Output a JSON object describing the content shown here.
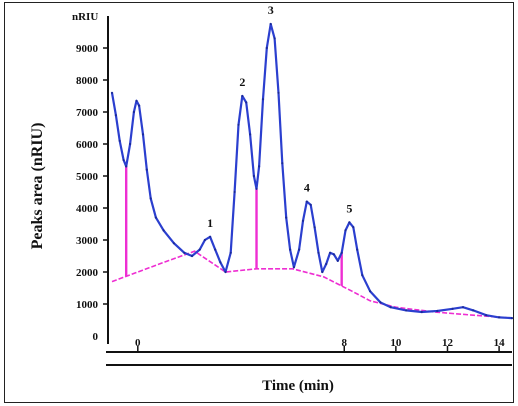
{
  "chart_data": {
    "type": "line",
    "unit_label": "nRIU",
    "xlabel": "Time (min)",
    "ylabel": "Peaks area (nRIU)",
    "xlim": [
      -1.0,
      14.5
    ],
    "ylim": [
      0,
      10000
    ],
    "x_ticks": [
      0,
      8,
      10,
      12,
      14
    ],
    "x_tick_labels": [
      "0",
      "8",
      "10",
      "12",
      "14"
    ],
    "y_ticks": [
      1000,
      2000,
      3000,
      4000,
      5000,
      6000,
      7000,
      8000,
      9000
    ],
    "y_tick_labels": [
      "1000",
      "2000",
      "3000",
      "4000",
      "5000",
      "6000",
      "7000",
      "8000",
      "9000"
    ],
    "y_zero_label": "0",
    "colors": {
      "signal": "#2b3fcf",
      "baseline": "#ee2ed2",
      "drop_lines": "#ee2ed2",
      "axis": "#111111"
    },
    "series": [
      {
        "values": [
          [
            -1.0,
            7600
          ],
          [
            -0.85,
            6900
          ],
          [
            -0.7,
            6100
          ],
          [
            -0.55,
            5500
          ],
          [
            -0.45,
            5300
          ],
          [
            -0.3,
            6000
          ],
          [
            -0.15,
            7000
          ],
          [
            -0.05,
            7350
          ],
          [
            0.05,
            7200
          ],
          [
            0.2,
            6300
          ],
          [
            0.35,
            5200
          ],
          [
            0.5,
            4300
          ],
          [
            0.7,
            3700
          ],
          [
            1.0,
            3300
          ],
          [
            1.4,
            2900
          ],
          [
            1.8,
            2600
          ],
          [
            2.1,
            2500
          ],
          [
            2.4,
            2700
          ],
          [
            2.6,
            3000
          ],
          [
            2.8,
            3100
          ],
          [
            3.0,
            2700
          ],
          [
            3.2,
            2300
          ],
          [
            3.4,
            2000
          ],
          [
            3.6,
            2600
          ],
          [
            3.75,
            4500
          ],
          [
            3.9,
            6600
          ],
          [
            4.05,
            7500
          ],
          [
            4.2,
            7300
          ],
          [
            4.35,
            6300
          ],
          [
            4.5,
            5000
          ],
          [
            4.6,
            4600
          ],
          [
            4.7,
            5300
          ],
          [
            4.85,
            7400
          ],
          [
            5.0,
            9000
          ],
          [
            5.15,
            9750
          ],
          [
            5.3,
            9300
          ],
          [
            5.45,
            7600
          ],
          [
            5.6,
            5400
          ],
          [
            5.75,
            3700
          ],
          [
            5.9,
            2700
          ],
          [
            6.05,
            2150
          ],
          [
            6.25,
            2700
          ],
          [
            6.4,
            3600
          ],
          [
            6.55,
            4200
          ],
          [
            6.7,
            4100
          ],
          [
            6.85,
            3400
          ],
          [
            7.0,
            2600
          ],
          [
            7.15,
            2000
          ],
          [
            7.3,
            2250
          ],
          [
            7.45,
            2600
          ],
          [
            7.6,
            2550
          ],
          [
            7.75,
            2350
          ],
          [
            7.9,
            2600
          ],
          [
            8.05,
            3300
          ],
          [
            8.2,
            3550
          ],
          [
            8.35,
            3400
          ],
          [
            8.5,
            2700
          ],
          [
            8.7,
            1900
          ],
          [
            9.0,
            1400
          ],
          [
            9.4,
            1050
          ],
          [
            9.8,
            900
          ],
          [
            10.4,
            800
          ],
          [
            11.0,
            750
          ],
          [
            11.6,
            780
          ],
          [
            12.2,
            850
          ],
          [
            12.6,
            900
          ],
          [
            13.0,
            800
          ],
          [
            13.5,
            650
          ],
          [
            14.0,
            580
          ],
          [
            14.5,
            560
          ]
        ]
      }
    ],
    "baseline": [
      [
        -1.0,
        1700
      ],
      [
        0.0,
        2000
      ],
      [
        1.0,
        2300
      ],
      [
        2.2,
        2650
      ],
      [
        3.4,
        2000
      ],
      [
        4.6,
        2100
      ],
      [
        6.0,
        2100
      ],
      [
        7.2,
        1850
      ],
      [
        8.3,
        1400
      ],
      [
        9.0,
        1100
      ],
      [
        10.0,
        900
      ],
      [
        11.5,
        750
      ],
      [
        13.0,
        650
      ],
      [
        14.5,
        560
      ]
    ],
    "drop_lines": [
      {
        "x": -0.45,
        "y_top": 5300
      },
      {
        "x": 4.6,
        "y_top": 4600
      },
      {
        "x": 7.9,
        "y_top": 2600
      }
    ],
    "peaks": [
      {
        "label": "1",
        "x": 2.8,
        "y": 3100
      },
      {
        "label": "2",
        "x": 4.05,
        "y": 7500
      },
      {
        "label": "3",
        "x": 5.15,
        "y": 9750
      },
      {
        "label": "4",
        "x": 6.55,
        "y": 4200
      },
      {
        "label": "5",
        "x": 8.2,
        "y": 3550
      }
    ]
  }
}
